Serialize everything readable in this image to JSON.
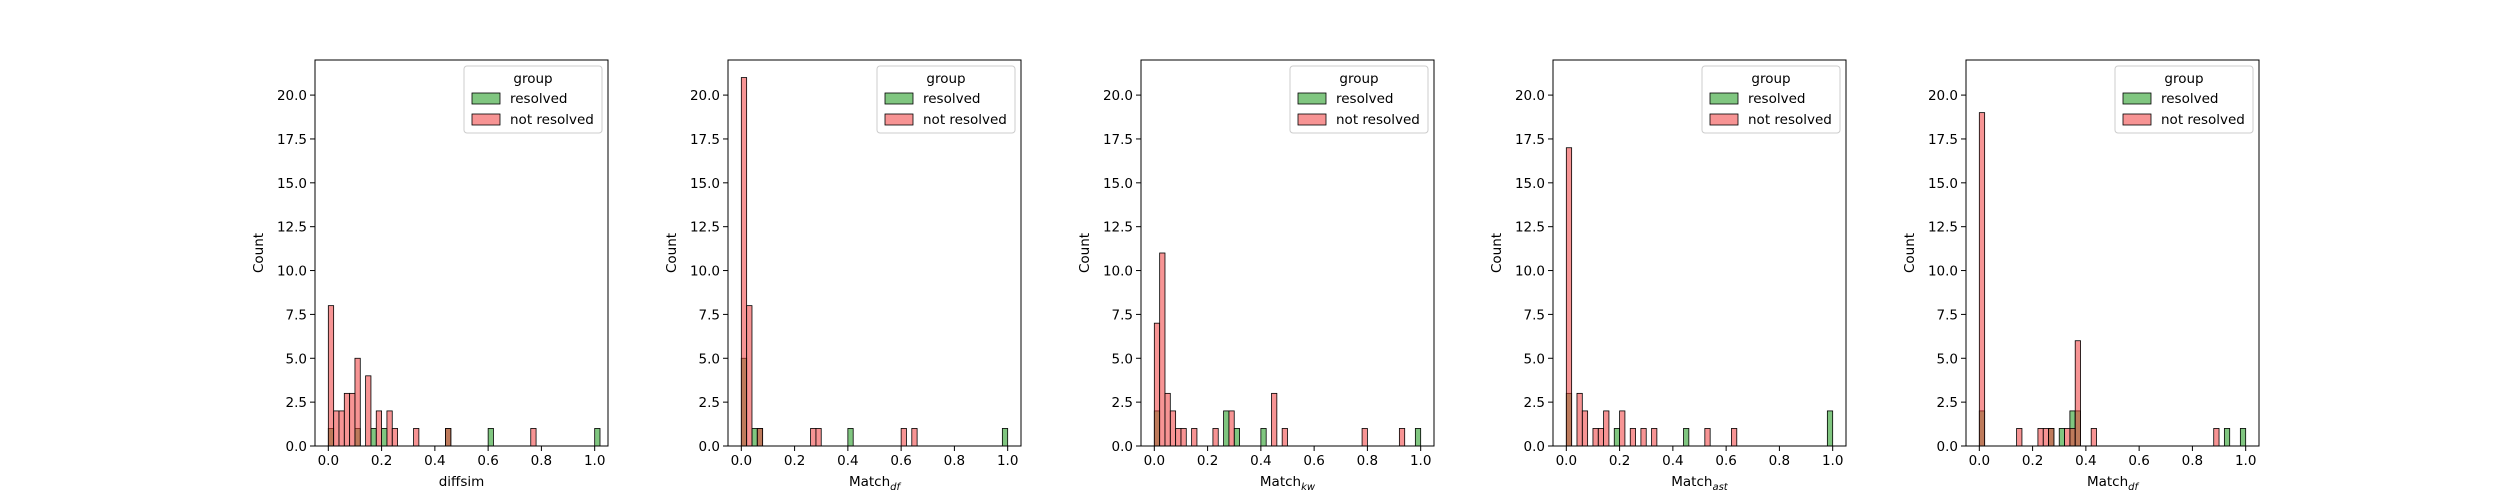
{
  "colors": {
    "resolved": "#2ca02c",
    "not_resolved": "#f03c3c",
    "edge": "#000000",
    "legend_edge": "#cccccc"
  },
  "legend_title": "group",
  "chart_data": [
    {
      "type": "histogram",
      "xlabel": "diffsim",
      "ylabel": "Count",
      "xlim": [
        -0.05,
        1.05
      ],
      "ylim": [
        0,
        22
      ],
      "xticks": [
        0.0,
        0.2,
        0.4,
        0.6,
        0.8,
        1.0
      ],
      "xtick_labels": [
        "0.0",
        "0.2",
        "0.4",
        "0.6",
        "0.8",
        "1.0"
      ],
      "yticks": [
        0.0,
        2.5,
        5.0,
        7.5,
        10.0,
        12.5,
        15.0,
        17.5,
        20.0
      ],
      "ytick_labels": [
        "0.0",
        "2.5",
        "5.0",
        "7.5",
        "10.0",
        "12.5",
        "15.0",
        "17.5",
        "20.0"
      ],
      "bin_width": 0.02,
      "legend": "top-right",
      "series": [
        {
          "name": "resolved",
          "bins": [
            [
              0.0,
              1
            ],
            [
              0.1,
              1
            ],
            [
              0.16,
              1
            ],
            [
              0.2,
              1
            ],
            [
              0.44,
              1
            ],
            [
              0.6,
              1
            ],
            [
              1.0,
              1
            ]
          ]
        },
        {
          "name": "not resolved",
          "bins": [
            [
              0.0,
              8
            ],
            [
              0.02,
              2
            ],
            [
              0.04,
              2
            ],
            [
              0.06,
              3
            ],
            [
              0.08,
              3
            ],
            [
              0.1,
              5
            ],
            [
              0.14,
              4
            ],
            [
              0.18,
              2
            ],
            [
              0.22,
              2
            ],
            [
              0.24,
              1
            ],
            [
              0.32,
              1
            ],
            [
              0.44,
              1
            ],
            [
              0.76,
              1
            ]
          ]
        }
      ]
    },
    {
      "type": "histogram",
      "xlabel_main": "Match",
      "xlabel_sub": "df",
      "ylabel": "Count",
      "xlim": [
        -0.05,
        1.05
      ],
      "ylim": [
        0,
        22
      ],
      "xticks": [
        0.0,
        0.2,
        0.4,
        0.6,
        0.8,
        1.0
      ],
      "xtick_labels": [
        "0.0",
        "0.2",
        "0.4",
        "0.6",
        "0.8",
        "1.0"
      ],
      "yticks": [
        0.0,
        2.5,
        5.0,
        7.5,
        10.0,
        12.5,
        15.0,
        17.5,
        20.0
      ],
      "ytick_labels": [
        "0.0",
        "2.5",
        "5.0",
        "7.5",
        "10.0",
        "12.5",
        "15.0",
        "17.5",
        "20.0"
      ],
      "bin_width": 0.02,
      "legend": "top-right",
      "series": [
        {
          "name": "resolved",
          "bins": [
            [
              0.0,
              5
            ],
            [
              0.04,
              1
            ],
            [
              0.06,
              1
            ],
            [
              0.4,
              1
            ],
            [
              0.98,
              1
            ]
          ]
        },
        {
          "name": "not resolved",
          "bins": [
            [
              0.0,
              21
            ],
            [
              0.02,
              8
            ],
            [
              0.06,
              1
            ],
            [
              0.26,
              1
            ],
            [
              0.28,
              1
            ],
            [
              0.6,
              1
            ],
            [
              0.64,
              1
            ]
          ]
        }
      ]
    },
    {
      "type": "histogram",
      "xlabel_main": "Match",
      "xlabel_sub": "kw",
      "ylabel": "Count",
      "xlim": [
        -0.05,
        1.05
      ],
      "ylim": [
        0,
        22
      ],
      "xticks": [
        0.0,
        0.2,
        0.4,
        0.6,
        0.8,
        1.0
      ],
      "xtick_labels": [
        "0.0",
        "0.2",
        "0.4",
        "0.6",
        "0.8",
        "1.0"
      ],
      "yticks": [
        0.0,
        2.5,
        5.0,
        7.5,
        10.0,
        12.5,
        15.0,
        17.5,
        20.0
      ],
      "ytick_labels": [
        "0.0",
        "2.5",
        "5.0",
        "7.5",
        "10.0",
        "12.5",
        "15.0",
        "17.5",
        "20.0"
      ],
      "bin_width": 0.02,
      "legend": "top-right",
      "series": [
        {
          "name": "resolved",
          "bins": [
            [
              0.0,
              2
            ],
            [
              0.26,
              2
            ],
            [
              0.3,
              1
            ],
            [
              0.4,
              1
            ],
            [
              0.98,
              1
            ]
          ]
        },
        {
          "name": "not resolved",
          "bins": [
            [
              0.0,
              7
            ],
            [
              0.02,
              11
            ],
            [
              0.04,
              3
            ],
            [
              0.06,
              2
            ],
            [
              0.08,
              1
            ],
            [
              0.1,
              1
            ],
            [
              0.14,
              1
            ],
            [
              0.22,
              1
            ],
            [
              0.28,
              2
            ],
            [
              0.44,
              3
            ],
            [
              0.48,
              1
            ],
            [
              0.78,
              1
            ],
            [
              0.92,
              1
            ]
          ]
        }
      ]
    },
    {
      "type": "histogram",
      "xlabel_main": "Match",
      "xlabel_sub": "ast",
      "ylabel": "Count",
      "xlim": [
        -0.05,
        1.05
      ],
      "ylim": [
        0,
        22
      ],
      "xticks": [
        0.0,
        0.2,
        0.4,
        0.6,
        0.8,
        1.0
      ],
      "xtick_labels": [
        "0.0",
        "0.2",
        "0.4",
        "0.6",
        "0.8",
        "1.0"
      ],
      "yticks": [
        0.0,
        2.5,
        5.0,
        7.5,
        10.0,
        12.5,
        15.0,
        17.5,
        20.0
      ],
      "ytick_labels": [
        "0.0",
        "2.5",
        "5.0",
        "7.5",
        "10.0",
        "12.5",
        "15.0",
        "17.5",
        "20.0"
      ],
      "bin_width": 0.02,
      "legend": "top-right",
      "series": [
        {
          "name": "resolved",
          "bins": [
            [
              0.0,
              3
            ],
            [
              0.18,
              1
            ],
            [
              0.44,
              1
            ],
            [
              0.98,
              2
            ]
          ]
        },
        {
          "name": "not resolved",
          "bins": [
            [
              0.0,
              17
            ],
            [
              0.04,
              3
            ],
            [
              0.06,
              2
            ],
            [
              0.1,
              1
            ],
            [
              0.12,
              1
            ],
            [
              0.14,
              2
            ],
            [
              0.2,
              2
            ],
            [
              0.24,
              1
            ],
            [
              0.28,
              1
            ],
            [
              0.32,
              1
            ],
            [
              0.52,
              1
            ],
            [
              0.62,
              1
            ]
          ]
        }
      ]
    },
    {
      "type": "histogram",
      "xlabel_main": "Match",
      "xlabel_sub": "df",
      "ylabel": "Count",
      "xlim": [
        -0.05,
        1.05
      ],
      "ylim": [
        0,
        22
      ],
      "xticks": [
        0.0,
        0.2,
        0.4,
        0.6,
        0.8,
        1.0
      ],
      "xtick_labels": [
        "0.0",
        "0.2",
        "0.4",
        "0.6",
        "0.8",
        "1.0"
      ],
      "yticks": [
        0.0,
        2.5,
        5.0,
        7.5,
        10.0,
        12.5,
        15.0,
        17.5,
        20.0
      ],
      "ytick_labels": [
        "0.0",
        "2.5",
        "5.0",
        "7.5",
        "10.0",
        "12.5",
        "15.0",
        "17.5",
        "20.0"
      ],
      "bin_width": 0.02,
      "legend": "top-right",
      "series": [
        {
          "name": "resolved",
          "bins": [
            [
              0.0,
              2
            ],
            [
              0.26,
              1
            ],
            [
              0.3,
              1
            ],
            [
              0.34,
              2
            ],
            [
              0.36,
              2
            ],
            [
              0.92,
              1
            ],
            [
              0.98,
              1
            ]
          ]
        },
        {
          "name": "not resolved",
          "bins": [
            [
              0.0,
              19
            ],
            [
              0.14,
              1
            ],
            [
              0.22,
              1
            ],
            [
              0.24,
              1
            ],
            [
              0.26,
              1
            ],
            [
              0.32,
              1
            ],
            [
              0.34,
              1
            ],
            [
              0.36,
              6
            ],
            [
              0.42,
              1
            ],
            [
              0.88,
              1
            ]
          ]
        }
      ]
    }
  ]
}
